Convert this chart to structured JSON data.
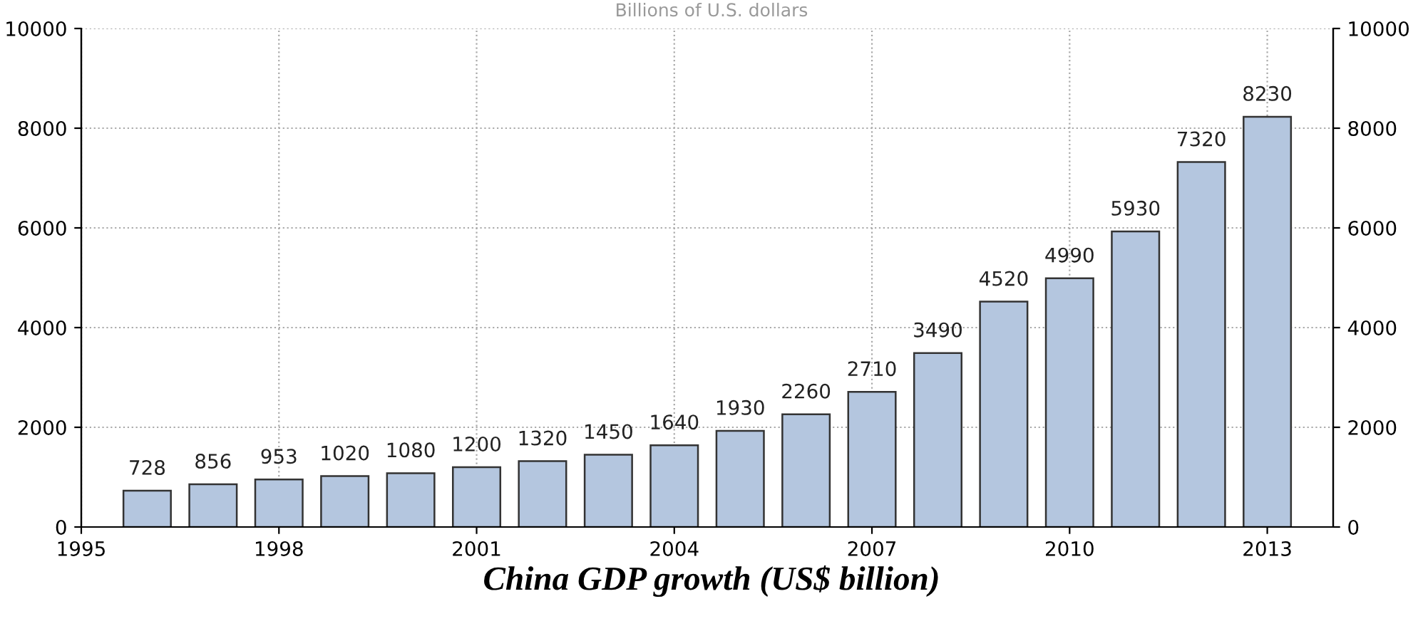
{
  "chart_data": {
    "type": "bar",
    "title": "China GDP growth (US$ billion)",
    "subtitle": "Billions of U.S. dollars",
    "x": [
      1996,
      1997,
      1998,
      1999,
      2000,
      2001,
      2002,
      2003,
      2004,
      2005,
      2006,
      2007,
      2008,
      2009,
      2010,
      2011,
      2012,
      2013
    ],
    "values": [
      728,
      856,
      953,
      1020,
      1080,
      1200,
      1320,
      1450,
      1640,
      1930,
      2260,
      2710,
      3490,
      4520,
      4990,
      5930,
      7320,
      8230
    ],
    "color": "#b4c6df",
    "data_labels": true,
    "xlim": [
      1995,
      2014
    ],
    "xticks": [
      1995,
      1998,
      2001,
      2004,
      2007,
      2010,
      2013
    ],
    "ylim": [
      0,
      10000
    ],
    "yticks": [
      0,
      2000,
      4000,
      6000,
      8000,
      10000
    ],
    "y2lim": [
      0,
      10000
    ],
    "y2ticks": [
      0,
      2000,
      4000,
      6000,
      8000,
      10000
    ],
    "grid": true
  }
}
